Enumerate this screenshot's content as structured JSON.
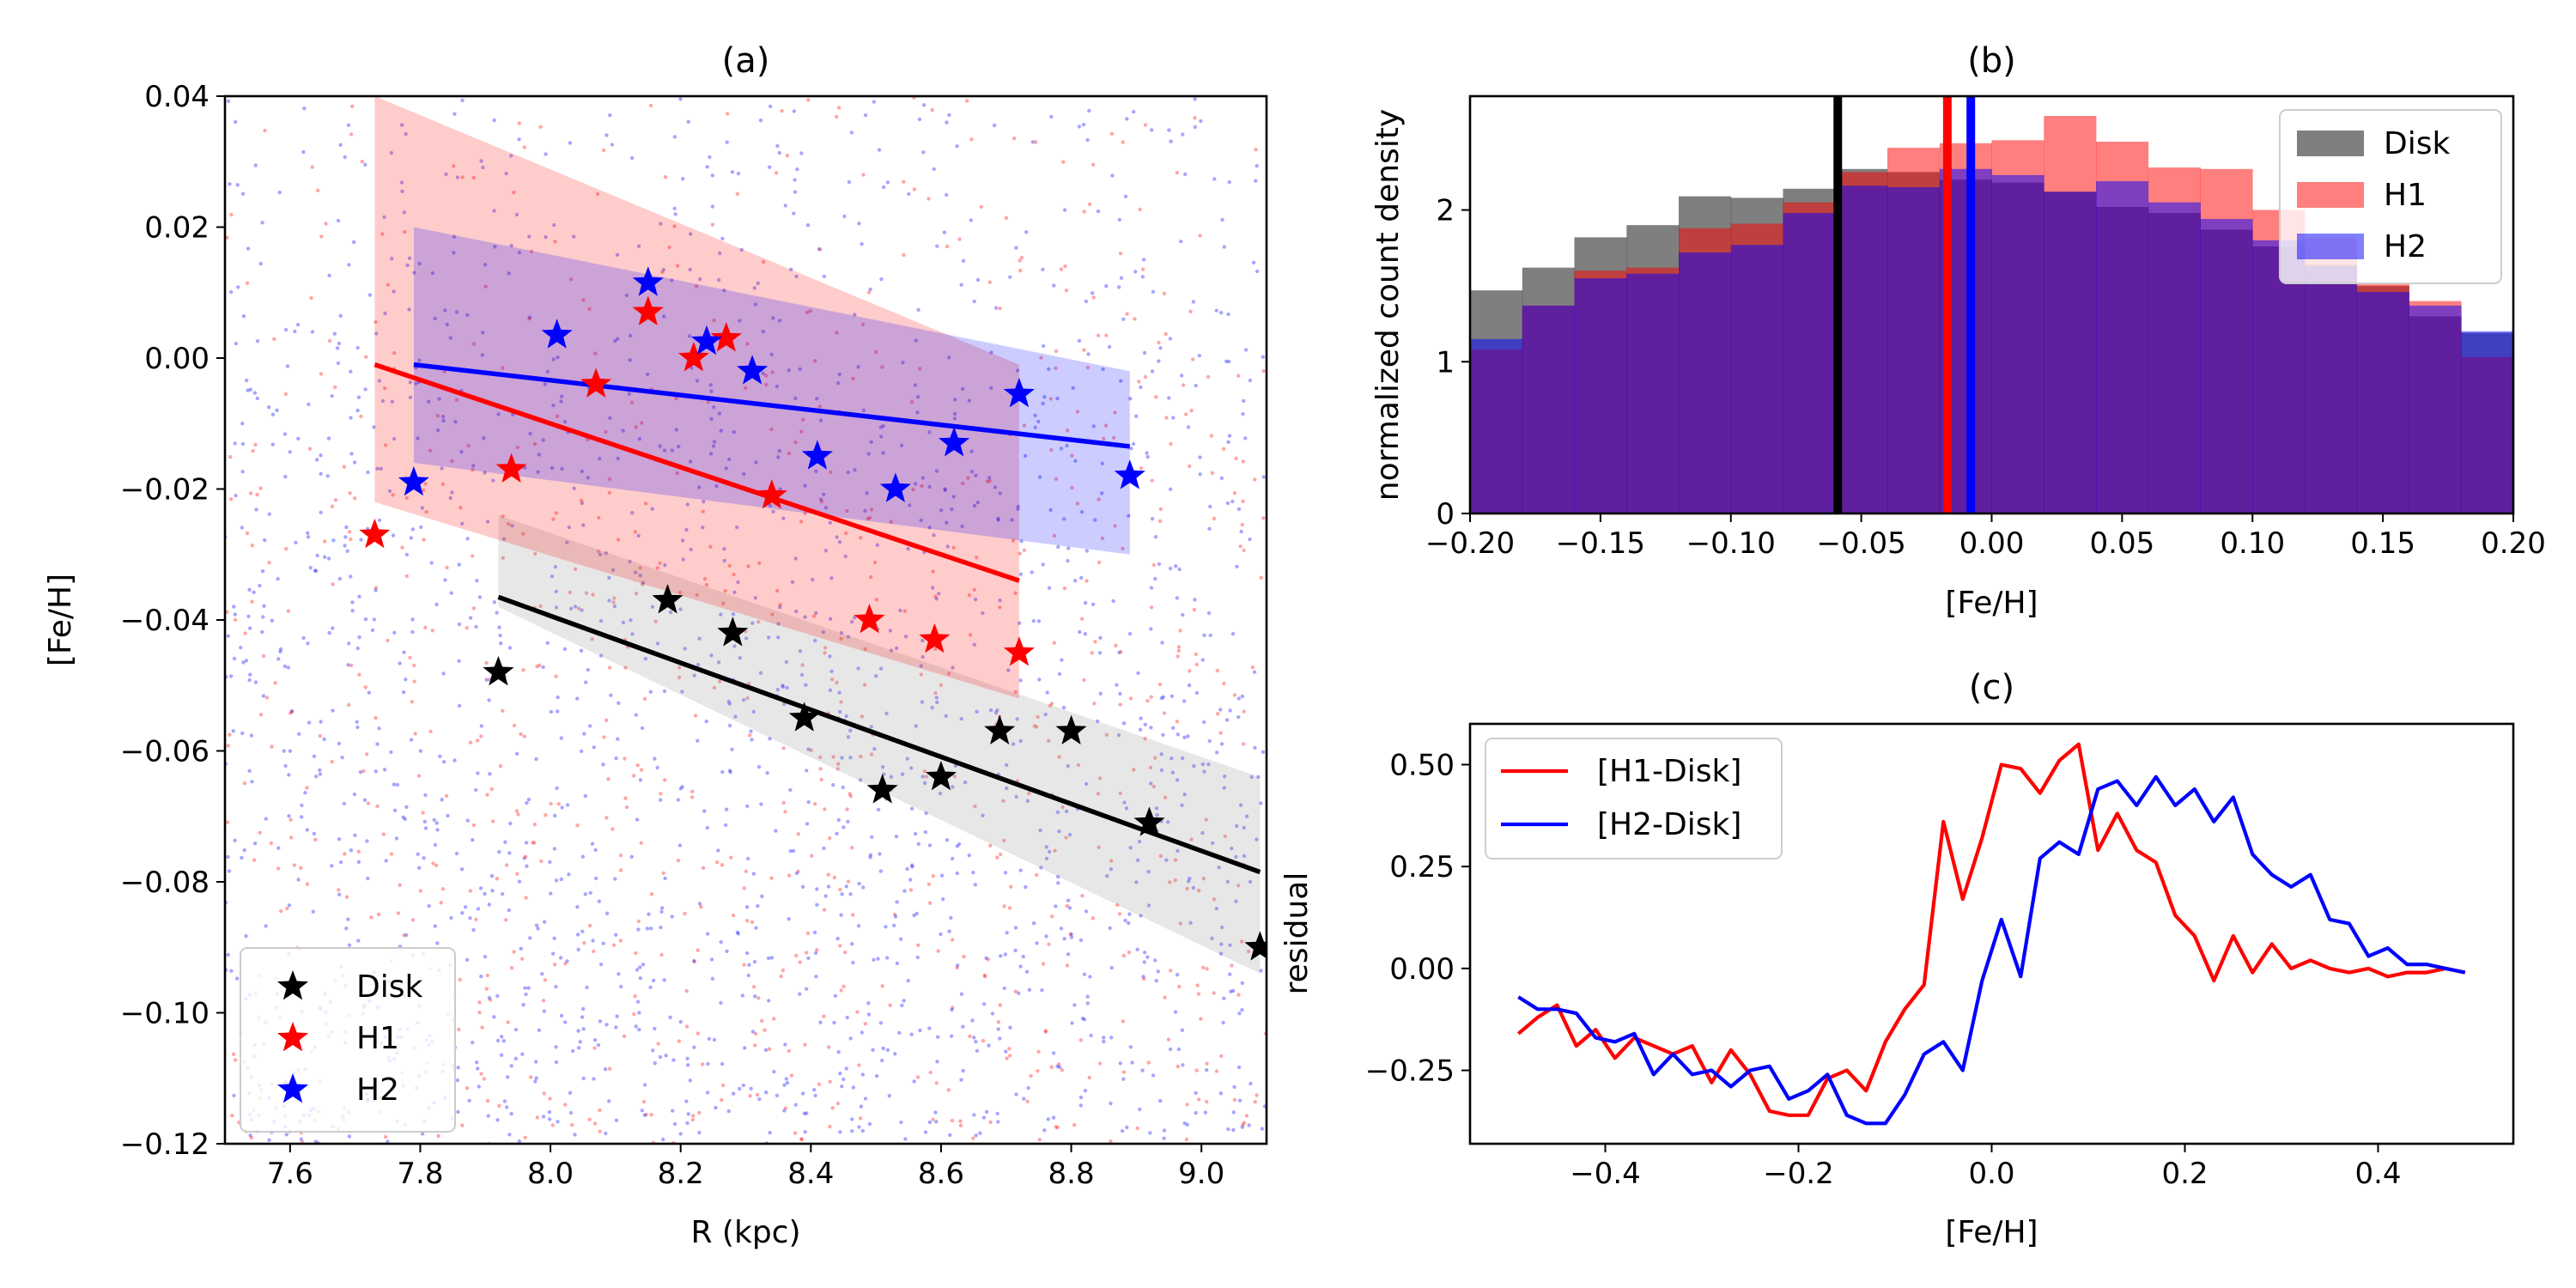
{
  "chart_data": [
    {
      "id": "a",
      "type": "scatter",
      "title": "(a)",
      "xlabel": "R (kpc)",
      "ylabel": "[Fe/H]",
      "xlim": [
        7.5,
        9.1
      ],
      "ylim": [
        -0.12,
        0.04
      ],
      "xticks": [
        7.6,
        7.8,
        8.0,
        8.2,
        8.4,
        8.6,
        8.8,
        9.0
      ],
      "xtick_labels": [
        "7.6",
        "7.8",
        "8.0",
        "8.2",
        "8.4",
        "8.6",
        "8.8",
        "9.0"
      ],
      "yticks": [
        0.04,
        0.02,
        0.0,
        -0.02,
        -0.04,
        -0.06,
        -0.08,
        -0.1,
        -0.12
      ],
      "ytick_labels": [
        "0.04",
        "0.02",
        "0.00",
        "−0.02",
        "−0.04",
        "−0.06",
        "−0.08",
        "−0.10",
        "−0.12"
      ],
      "legend": {
        "position": "lower-left",
        "entries": [
          "Disk",
          "H1",
          "H2"
        ]
      },
      "background_points": "dense random scatter of individual stars (red and blue), 7.5–9.1 kpc",
      "series": [
        {
          "name": "Disk",
          "color": "#000000",
          "stars": [
            [
              7.92,
              -0.048
            ],
            [
              8.18,
              -0.037
            ],
            [
              8.28,
              -0.042
            ],
            [
              8.39,
              -0.055
            ],
            [
              8.51,
              -0.066
            ],
            [
              8.6,
              -0.064
            ],
            [
              8.69,
              -0.057
            ],
            [
              8.8,
              -0.057
            ],
            [
              8.92,
              -0.071
            ],
            [
              9.09,
              -0.09
            ]
          ],
          "fit": [
            [
              7.92,
              -0.0365
            ],
            [
              9.09,
              -0.0785
            ]
          ],
          "band": [
            [
              7.92,
              -0.038,
              -0.024
            ],
            [
              9.09,
              -0.094,
              -0.064
            ]
          ]
        },
        {
          "name": "H1",
          "color": "#ff0000",
          "stars": [
            [
              7.73,
              -0.027
            ],
            [
              7.94,
              -0.017
            ],
            [
              8.07,
              -0.004
            ],
            [
              8.15,
              0.007
            ],
            [
              8.22,
              0.0
            ],
            [
              8.27,
              0.003
            ],
            [
              8.34,
              -0.021
            ],
            [
              8.49,
              -0.04
            ],
            [
              8.59,
              -0.043
            ],
            [
              8.72,
              -0.045
            ]
          ],
          "fit": [
            [
              7.73,
              -0.001
            ],
            [
              8.72,
              -0.034
            ]
          ],
          "band": [
            [
              7.73,
              -0.022,
              0.04
            ],
            [
              8.72,
              -0.052,
              -0.001
            ]
          ]
        },
        {
          "name": "H2",
          "color": "#0000ff",
          "stars": [
            [
              7.79,
              -0.019
            ],
            [
              8.01,
              0.0035
            ],
            [
              8.15,
              0.0115
            ],
            [
              8.24,
              0.0025
            ],
            [
              8.31,
              -0.002
            ],
            [
              8.41,
              -0.015
            ],
            [
              8.53,
              -0.02
            ],
            [
              8.62,
              -0.013
            ],
            [
              8.72,
              -0.0055
            ],
            [
              8.89,
              -0.018
            ]
          ],
          "fit": [
            [
              7.79,
              -0.001
            ],
            [
              8.89,
              -0.0135
            ]
          ],
          "band": [
            [
              7.79,
              -0.016,
              0.02
            ],
            [
              8.89,
              -0.03,
              -0.002
            ]
          ]
        }
      ]
    },
    {
      "id": "b",
      "type": "bar",
      "title": "(b)",
      "xlabel": "[Fe/H]",
      "ylabel": "normalized count density",
      "xlim": [
        -0.2,
        0.2
      ],
      "ylim": [
        0,
        2.75
      ],
      "xticks": [
        -0.2,
        -0.15,
        -0.1,
        -0.05,
        0.0,
        0.05,
        0.1,
        0.15,
        0.2
      ],
      "xtick_labels": [
        "−0.20",
        "−0.15",
        "−0.10",
        "−0.05",
        "0.00",
        "0.05",
        "0.10",
        "0.15",
        "0.20"
      ],
      "yticks": [
        0,
        1,
        2
      ],
      "ytick_labels": [
        "0",
        "1",
        "2"
      ],
      "legend": {
        "position": "top-right",
        "entries": [
          "Disk",
          "H1",
          "H2"
        ]
      },
      "bin_edges_start": -0.2,
      "bin_width": 0.02,
      "series": [
        {
          "name": "Disk",
          "color": "#000000",
          "alpha": 0.5,
          "values": [
            1.47,
            1.62,
            1.82,
            1.9,
            2.09,
            2.08,
            2.14,
            2.27,
            2.25,
            2.2,
            2.18,
            2.12,
            2.02,
            1.98,
            1.87,
            1.76,
            1.64,
            1.5,
            1.3,
            1.19
          ]
        },
        {
          "name": "H1",
          "color": "#ff0000",
          "alpha": 0.5,
          "values": [
            1.08,
            1.37,
            1.6,
            1.62,
            1.88,
            1.91,
            2.05,
            2.25,
            2.41,
            2.44,
            2.46,
            2.62,
            2.45,
            2.28,
            2.27,
            2.0,
            1.82,
            1.51,
            1.4,
            1.03
          ]
        },
        {
          "name": "H2",
          "color": "#0000ff",
          "alpha": 0.5,
          "values": [
            1.15,
            1.37,
            1.55,
            1.58,
            1.72,
            1.77,
            1.98,
            2.16,
            2.15,
            2.27,
            2.23,
            2.12,
            2.19,
            2.05,
            1.94,
            1.8,
            1.63,
            1.46,
            1.37,
            1.2
          ]
        }
      ],
      "vlines": [
        {
          "name": "Disk mean",
          "x": -0.059,
          "color": "#000000"
        },
        {
          "name": "H1 mean",
          "x": -0.017,
          "color": "#ff0000"
        },
        {
          "name": "H2 mean",
          "x": -0.008,
          "color": "#0000ff"
        }
      ]
    },
    {
      "id": "c",
      "type": "line",
      "title": "(c)",
      "xlabel": "[Fe/H]",
      "ylabel": "residual",
      "xlim": [
        -0.54,
        0.54
      ],
      "ylim": [
        -0.43,
        0.6
      ],
      "xticks": [
        -0.4,
        -0.2,
        0.0,
        0.2,
        0.4
      ],
      "xtick_labels": [
        "−0.4",
        "−0.2",
        "0.0",
        "0.2",
        "0.4"
      ],
      "yticks": [
        -0.25,
        0.0,
        0.25,
        0.5
      ],
      "ytick_labels": [
        "−0.25",
        "0.00",
        "0.25",
        "0.50"
      ],
      "legend": {
        "position": "top-left",
        "entries": [
          "[H1-Disk]",
          "[H2-Disk]"
        ]
      },
      "x": [
        -0.49,
        -0.47,
        -0.45,
        -0.43,
        -0.41,
        -0.39,
        -0.37,
        -0.35,
        -0.33,
        -0.31,
        -0.29,
        -0.27,
        -0.25,
        -0.23,
        -0.21,
        -0.19,
        -0.17,
        -0.15,
        -0.13,
        -0.11,
        -0.09,
        -0.07,
        -0.05,
        -0.03,
        -0.01,
        0.01,
        0.03,
        0.05,
        0.07,
        0.09,
        0.11,
        0.13,
        0.15,
        0.17,
        0.19,
        0.21,
        0.23,
        0.25,
        0.27,
        0.29,
        0.31,
        0.33,
        0.35,
        0.37,
        0.39,
        0.41,
        0.43,
        0.45,
        0.47,
        0.49
      ],
      "series": [
        {
          "name": "[H1-Disk]",
          "color": "#ff0000",
          "values": [
            -0.16,
            -0.12,
            -0.09,
            -0.19,
            -0.15,
            -0.22,
            -0.17,
            -0.19,
            -0.21,
            -0.19,
            -0.28,
            -0.2,
            -0.26,
            -0.35,
            -0.36,
            -0.36,
            -0.27,
            -0.25,
            -0.3,
            -0.18,
            -0.1,
            -0.04,
            0.36,
            0.17,
            0.32,
            0.5,
            0.49,
            0.43,
            0.51,
            0.55,
            0.29,
            0.38,
            0.29,
            0.26,
            0.13,
            0.08,
            -0.03,
            0.08,
            -0.01,
            0.06,
            0.0,
            0.02,
            0.0,
            -0.01,
            0.0,
            -0.02,
            -0.01,
            -0.01,
            0.0,
            -0.01
          ]
        },
        {
          "name": "[H2-Disk]",
          "color": "#0000ff",
          "values": [
            -0.07,
            -0.1,
            -0.1,
            -0.11,
            -0.17,
            -0.18,
            -0.16,
            -0.26,
            -0.21,
            -0.26,
            -0.25,
            -0.29,
            -0.25,
            -0.24,
            -0.32,
            -0.3,
            -0.26,
            -0.36,
            -0.38,
            -0.38,
            -0.31,
            -0.21,
            -0.18,
            -0.25,
            -0.03,
            0.12,
            -0.02,
            0.27,
            0.31,
            0.28,
            0.44,
            0.46,
            0.4,
            0.47,
            0.4,
            0.44,
            0.36,
            0.42,
            0.28,
            0.23,
            0.2,
            0.23,
            0.12,
            0.11,
            0.03,
            0.05,
            0.01,
            0.01,
            0.0,
            -0.01
          ]
        }
      ]
    }
  ]
}
